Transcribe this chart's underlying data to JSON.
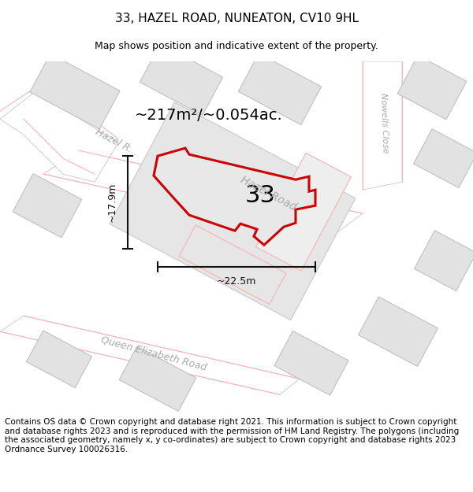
{
  "title": "33, HAZEL ROAD, NUNEATON, CV10 9HL",
  "subtitle": "Map shows position and indicative extent of the property.",
  "footer": "Contains OS data © Crown copyright and database right 2021. This information is subject to Crown copyright and database rights 2023 and is reproduced with the permission of HM Land Registry. The polygons (including the associated geometry, namely x, y co-ordinates) are subject to Crown copyright and database rights 2023 Ordnance Survey 100026316.",
  "area_label": "~217m²/~0.054ac.",
  "width_label": "~22.5m",
  "height_label": "~17.9m",
  "property_number": "33",
  "map_bg": "#f7f7f7",
  "road_fill": "#ffffff",
  "road_edge": "#c8c8c8",
  "road_outline_color": "#f5b8b8",
  "building_fill": "#e2e2e2",
  "building_edge": "#c0c0c0",
  "road_label_color": "#aaaaaa",
  "property_fill": "#e8e8e8",
  "property_stroke": "#cc0000",
  "dim_color": "#111111",
  "title_fontsize": 11,
  "subtitle_fontsize": 9,
  "footer_fontsize": 7.5
}
